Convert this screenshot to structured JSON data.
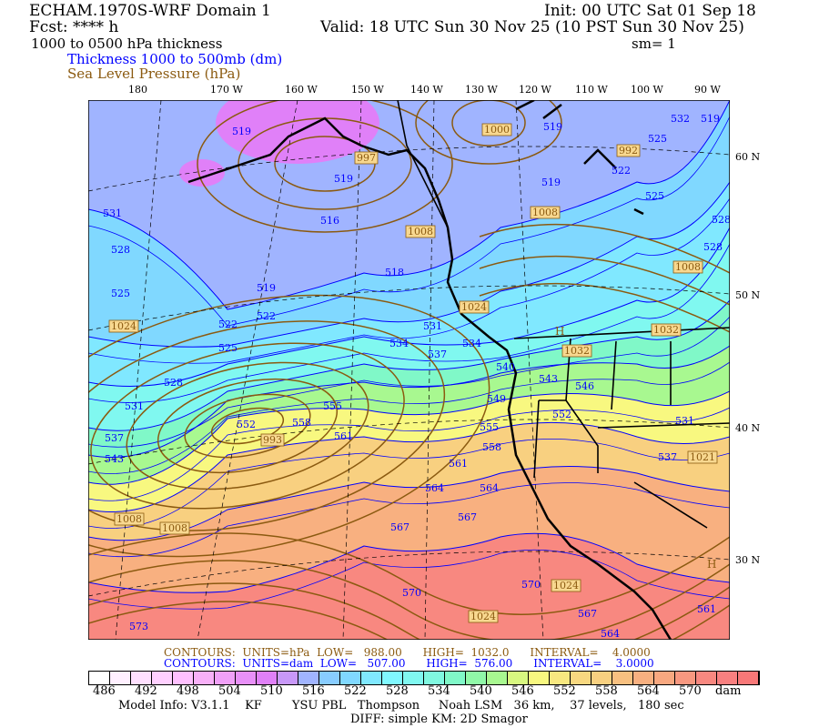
{
  "header": {
    "title": "ECHAM.1970S-WRF Domain 1",
    "init": "Init: 00 UTC Sat 01 Sep 18",
    "fcst": "Fcst: **** h",
    "valid": "Valid: 18 UTC Sun 30 Nov 25 (10 PST Sun 30 Nov 25)",
    "field": "1000 to 0500 hPa thickness",
    "sm": "sm= 1",
    "legend_thickness": "Thickness 1000 to 500mb (dm)",
    "legend_slp": "Sea Level Pressure (hPa)"
  },
  "lon_labels": [
    "180",
    "170 W",
    "160 W",
    "150 W",
    "140 W",
    "130 W",
    "120 W",
    "110 W",
    "100 W",
    "90 W"
  ],
  "lat_labels": [
    "60 N",
    "50 N",
    "40 N",
    "30 N"
  ],
  "thickness_labels": [
    "519",
    "519",
    "519",
    "522",
    "525",
    "525",
    "532",
    "519",
    "519",
    "516",
    "518",
    "519",
    "522",
    "522",
    "525",
    "528",
    "531",
    "537",
    "543",
    "531",
    "528",
    "525",
    "531",
    "534",
    "537",
    "534",
    "540",
    "543",
    "546",
    "549",
    "555",
    "552",
    "555",
    "558",
    "561",
    "561",
    "558",
    "552",
    "564",
    "564",
    "567",
    "567",
    "570",
    "570",
    "573",
    "567",
    "564",
    "561",
    "531",
    "537",
    "528",
    "528"
  ],
  "slp_labels": [
    "1008",
    "1008",
    "1000",
    "997",
    "992",
    "1008",
    "1024",
    "1024",
    "1032",
    "1032",
    "1008",
    "1008",
    "1024",
    "1024",
    "1021",
    "993"
  ],
  "highs": [
    "H",
    "H"
  ],
  "contour_info": {
    "slp": "CONTOURS:  UNITS=hPa  LOW=   988.00      HIGH=  1032.0      INTERVAL=    4.0000",
    "thk": "CONTOURS:  UNITS=dam  LOW=   507.00      HIGH=  576.00      INTERVAL=    3.0000"
  },
  "colorbar": {
    "labels": [
      "486",
      "492",
      "498",
      "504",
      "510",
      "516",
      "522",
      "528",
      "534",
      "540",
      "546",
      "552",
      "558",
      "564",
      "570"
    ],
    "unit": "dam",
    "colors": [
      "#ffffff",
      "#fff0ff",
      "#ffe0ff",
      "#ffd0ff",
      "#ffc0ff",
      "#f8b0f8",
      "#f0a0f8",
      "#e890f8",
      "#e080f8",
      "#c898f8",
      "#a0b4ff",
      "#88ccff",
      "#80d8ff",
      "#80e8ff",
      "#80f8ff",
      "#80f8f0",
      "#80f8e0",
      "#80f8c8",
      "#90f8a8",
      "#a8f890",
      "#d8f880",
      "#f8f880",
      "#f8e880",
      "#f8d880",
      "#f8d080",
      "#f8c080",
      "#f8b080",
      "#f8a880",
      "#f89880",
      "#f88880",
      "#f88080",
      "#f87878"
    ]
  },
  "footer": {
    "model": "Model Info: V3.1.1    KF        YSU PBL   Thompson     Noah LSM   36 km,    37 levels,   180 sec",
    "diff": "DIFF: simple KM: 2D Smagor"
  },
  "colors": {
    "thickness": "#0000ff",
    "slp": "#8b5a10",
    "coast": "#000000"
  }
}
